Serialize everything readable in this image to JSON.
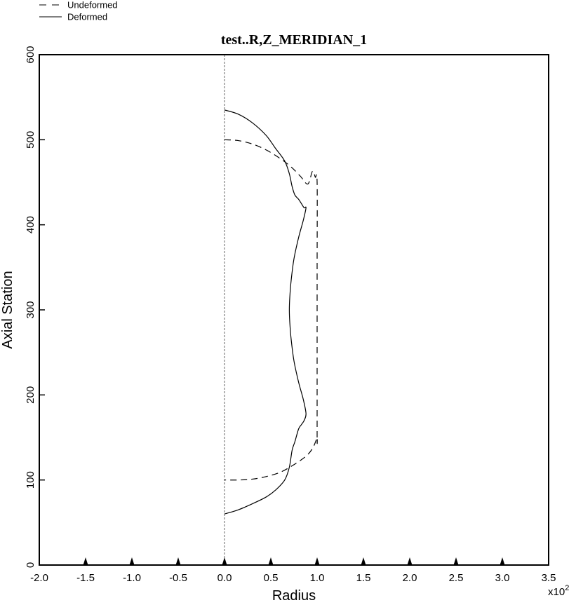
{
  "chart_data": {
    "type": "line",
    "title": "test..R,Z_MERIDIAN_1",
    "xlabel": "Radius",
    "ylabel": "Axial Station",
    "x_multiplier_label": "x10",
    "x_multiplier_exponent": "2",
    "xlim": [
      -2.0,
      3.5
    ],
    "ylim": [
      0,
      600
    ],
    "x_ticks": [
      -2.0,
      -1.5,
      -1.0,
      -0.5,
      0.0,
      0.5,
      1.0,
      1.5,
      2.0,
      2.5,
      3.0,
      3.5
    ],
    "x_tick_labels": [
      "-2.0",
      "-1.5",
      "-1.0",
      "-0.5",
      "0.0",
      "0.5",
      "1.0",
      "1.5",
      "2.0",
      "2.5",
      "3.0",
      "3.5"
    ],
    "y_ticks": [
      0,
      100,
      200,
      300,
      400,
      500,
      600
    ],
    "y_tick_labels": [
      "0",
      "100",
      "200",
      "300",
      "400",
      "500",
      "600"
    ],
    "marker_x": [
      -1.5,
      -1.0,
      -0.5,
      0.0,
      0.5,
      1.0,
      1.5,
      2.0,
      2.5,
      3.0
    ],
    "axis_line_x": 0.0,
    "grid": false,
    "legend_position": "top-left",
    "series": [
      {
        "name": "Undeformed",
        "style": "dashed",
        "color": "#000000",
        "x": [
          0.0,
          0.15,
          0.3,
          0.45,
          0.6,
          0.72,
          0.82,
          0.9,
          0.95,
          0.98,
          1.0,
          1.0,
          1.0,
          1.0,
          1.0,
          0.98,
          0.95,
          0.9,
          0.82,
          0.72,
          0.6,
          0.45,
          0.3,
          0.15,
          0.0
        ],
        "y": [
          500,
          499,
          495,
          488,
          478,
          468,
          457,
          448,
          463,
          456,
          450,
          350,
          250,
          150,
          150,
          144,
          137,
          130,
          123,
          116,
          109,
          104,
          101,
          100,
          100
        ]
      },
      {
        "name": "Deformed",
        "style": "solid",
        "color": "#000000",
        "x": [
          0.0,
          0.15,
          0.3,
          0.45,
          0.55,
          0.65,
          0.7,
          0.73,
          0.76,
          0.8,
          0.83,
          0.86,
          0.88,
          0.85,
          0.8,
          0.75,
          0.72,
          0.705,
          0.7,
          0.705,
          0.72,
          0.75,
          0.8,
          0.85,
          0.88,
          0.86,
          0.83,
          0.8,
          0.76,
          0.73,
          0.7,
          0.65,
          0.55,
          0.45,
          0.3,
          0.15,
          0.0
        ],
        "y": [
          535,
          530,
          520,
          505,
          490,
          475,
          460,
          445,
          435,
          430,
          425,
          420,
          420,
          405,
          385,
          360,
          335,
          315,
          300,
          285,
          265,
          240,
          215,
          195,
          178,
          170,
          165,
          160,
          145,
          135,
          115,
          100,
          88,
          80,
          72,
          65,
          60
        ]
      }
    ]
  }
}
